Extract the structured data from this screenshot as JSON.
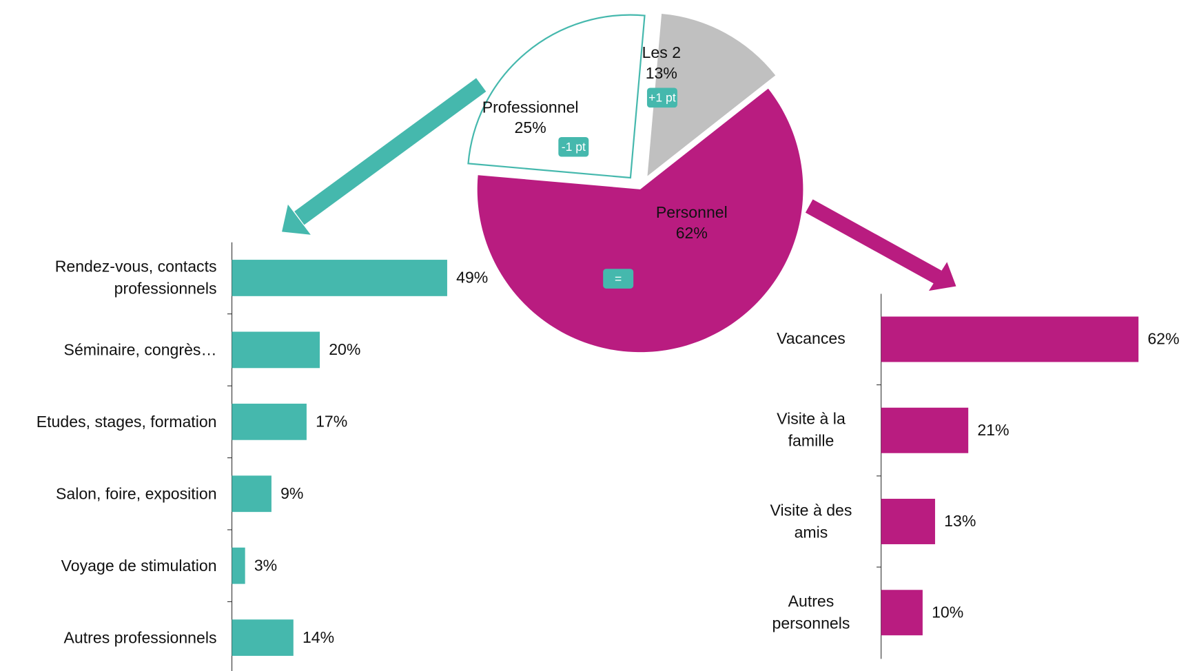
{
  "chart_data": [
    {
      "type": "pie",
      "categories": [
        "Professionnel",
        "Les 2",
        "Personnel"
      ],
      "values": [
        25,
        13,
        62
      ],
      "value_labels": [
        "25%",
        "13%",
        "62%"
      ],
      "changes": [
        "-1 pt",
        "+1 pt",
        "="
      ],
      "colors": [
        "#ffffff",
        "#c0c0c0",
        "#b91c80"
      ],
      "edgecolor": "#45b8ad",
      "badge_color": "#45b8ad"
    },
    {
      "type": "barh",
      "categories": [
        "Rendez-vous, contacts professionnels",
        "Séminaire, congrès…",
        "Etudes, stages, formation",
        "Salon, foire, exposition",
        "Voyage de stimulation",
        "Autres professionnels"
      ],
      "values": [
        49,
        20,
        17,
        9,
        3,
        14
      ],
      "value_labels": [
        "49%",
        "20%",
        "17%",
        "9%",
        "3%",
        "14%"
      ],
      "color": "#45b8ad",
      "xlim": [
        0,
        100
      ]
    },
    {
      "type": "barh",
      "categories": [
        "Vacances",
        "Visite à la famille",
        "Visite à des amis",
        "Autres personnels"
      ],
      "values": [
        62,
        21,
        13,
        10
      ],
      "value_labels": [
        "62%",
        "21%",
        "13%",
        "10%"
      ],
      "color": "#b91c80",
      "xlim": [
        0,
        100
      ]
    }
  ]
}
